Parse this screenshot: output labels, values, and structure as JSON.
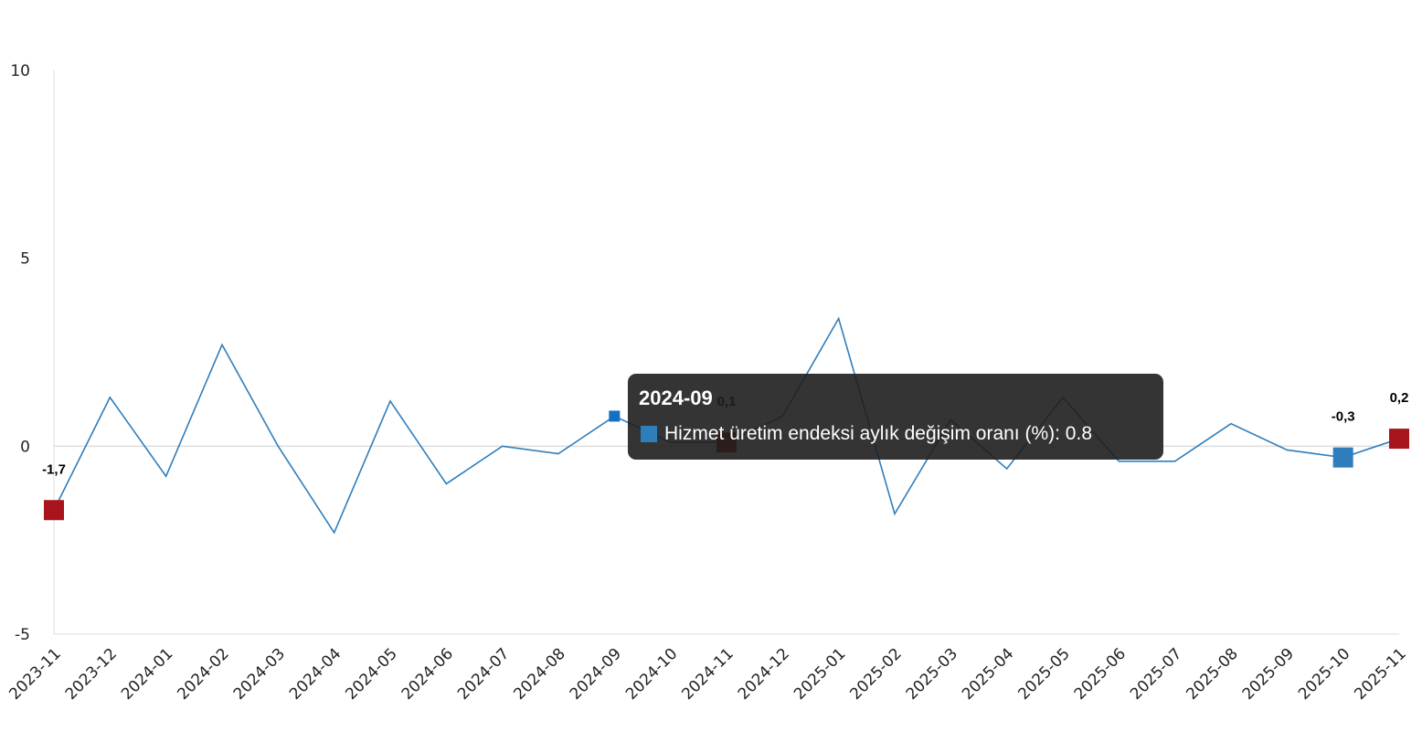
{
  "chart_data": {
    "type": "line",
    "title": "",
    "xlabel": "",
    "ylabel": "",
    "ylim": [
      -5,
      10
    ],
    "yticks": [
      -5,
      0,
      5,
      10
    ],
    "grid": false,
    "categories": [
      "2023-11",
      "2023-12",
      "2024-01",
      "2024-02",
      "2024-03",
      "2024-04",
      "2024-05",
      "2024-06",
      "2024-07",
      "2024-08",
      "2024-09",
      "2024-10",
      "2024-11",
      "2024-12",
      "2025-01",
      "2025-02",
      "2025-03",
      "2025-04",
      "2025-05",
      "2025-06",
      "2025-07",
      "2025-08",
      "2025-09",
      "2025-10",
      "2025-11"
    ],
    "series": [
      {
        "name": "Hizmet üretim endeksi aylık değişim oranı (%)",
        "color": "#2f7ebc",
        "values": [
          -1.7,
          1.3,
          -0.8,
          2.7,
          0.0,
          -2.3,
          1.2,
          -1.0,
          0.0,
          -0.2,
          0.8,
          0.1,
          0.1,
          0.8,
          3.4,
          -1.8,
          0.7,
          -0.6,
          1.3,
          -0.4,
          -0.4,
          0.6,
          -0.1,
          -0.3,
          0.2
        ]
      }
    ],
    "highlighted_points": [
      {
        "category": "2023-11",
        "label": "-1,7",
        "color": "#a8141c"
      },
      {
        "category": "2024-11",
        "label": "0,1",
        "color": "#a8141c"
      },
      {
        "category": "2025-10",
        "label": "-0,3",
        "color": "#2f7ebc"
      },
      {
        "category": "2025-11",
        "label": "0,2",
        "color": "#a8141c"
      }
    ],
    "hover_point": {
      "category": "2024-09",
      "color": "#1570c4"
    }
  },
  "tooltip": {
    "title": "2024-09",
    "series_name": "Hizmet üretim endeksi aylık değişim oranı (%)",
    "value": "0.8",
    "text": "Hizmet üretim endeksi aylık değişim oranı (%): 0.8",
    "swatch_color": "#2f7ebc"
  }
}
